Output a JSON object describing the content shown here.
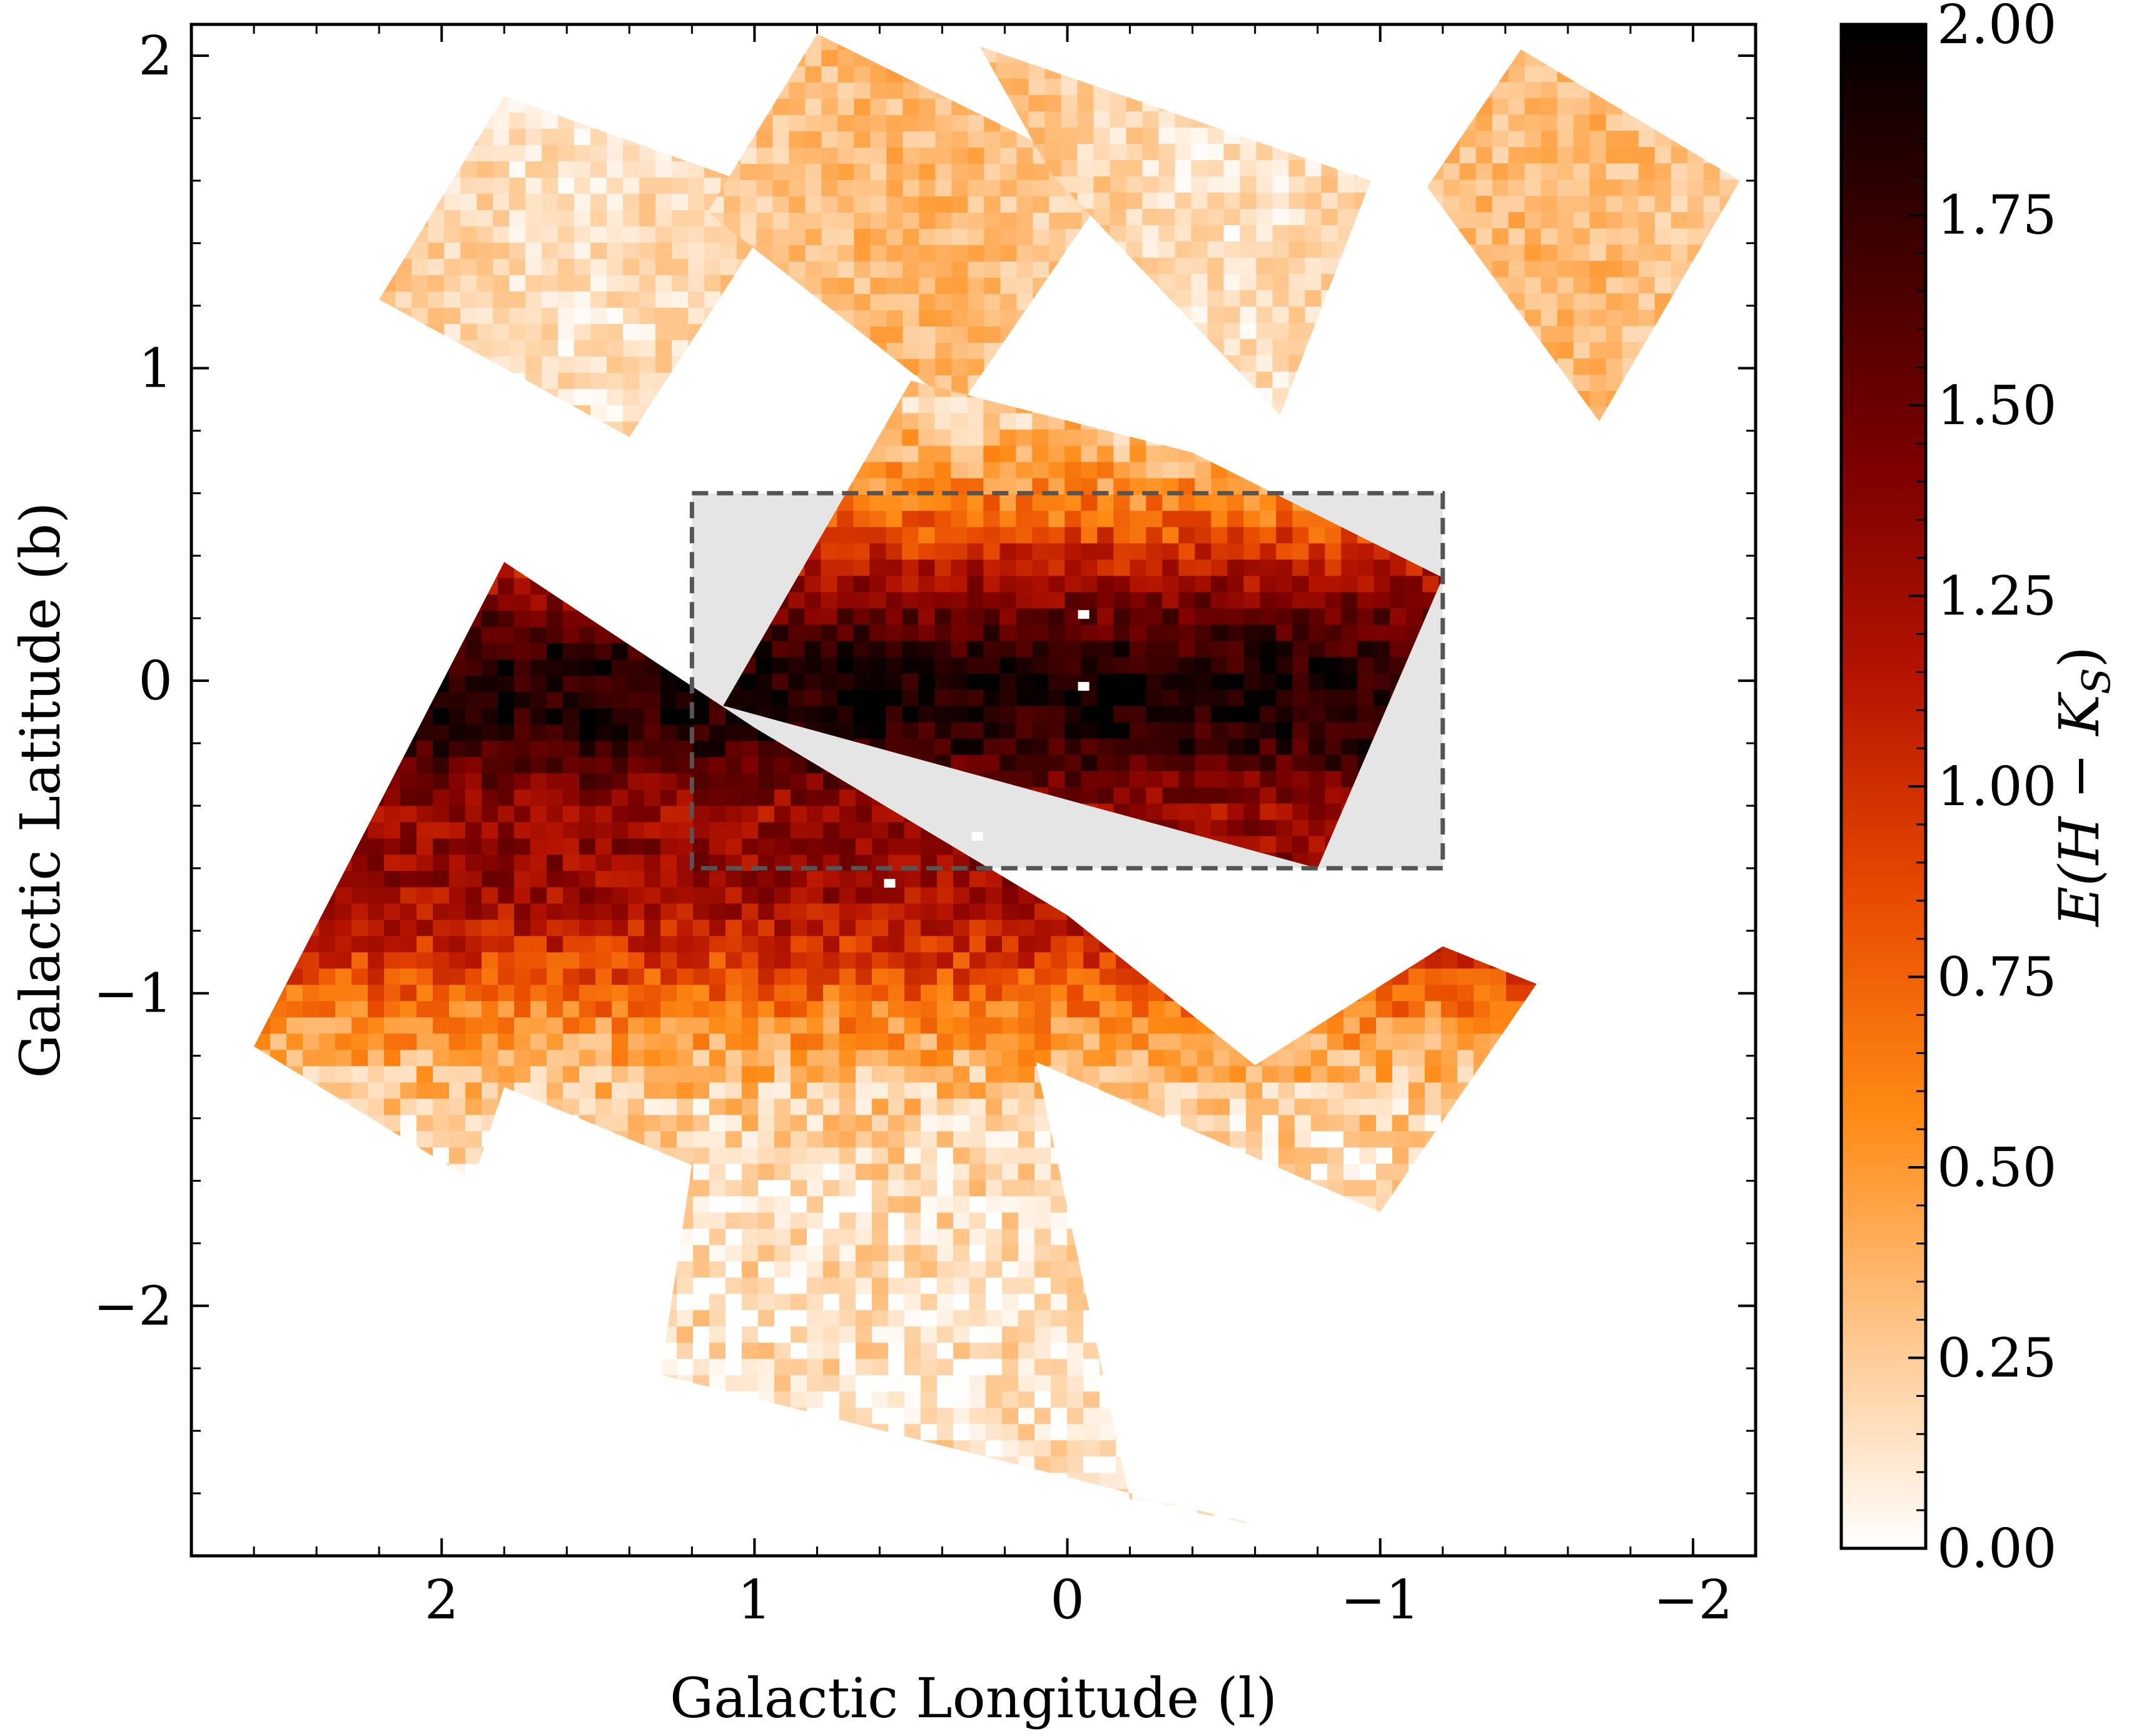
{
  "chart_data": {
    "type": "heatmap",
    "title": "",
    "xlabel": "Galactic Longitude (l)",
    "ylabel": "Galactic Latitude (b)",
    "xlim": [
      2.8,
      -2.2
    ],
    "ylim": [
      -2.8,
      2.1
    ],
    "xticks": [
      2,
      1,
      0,
      -1,
      -2
    ],
    "yticks": [
      2,
      1,
      0,
      -1,
      -2
    ],
    "xtick_labels": [
      "2",
      "1",
      "0",
      "−1",
      "−2"
    ],
    "ytick_labels": [
      "2",
      "1",
      "0",
      "−1",
      "−2"
    ],
    "colorbar": {
      "label": "E(H − K_S)",
      "label_parts": {
        "open": "E(",
        "h": "H",
        "minus": " − ",
        "k": "K",
        "sub": "S",
        "close": ")"
      },
      "range": [
        0.0,
        2.0
      ],
      "ticks": [
        0.0,
        0.25,
        0.5,
        0.75,
        1.0,
        1.25,
        1.5,
        1.75,
        2.0
      ],
      "tick_labels": [
        "0.00",
        "0.25",
        "0.50",
        "0.75",
        "1.00",
        "1.25",
        "1.50",
        "1.75",
        "2.00"
      ],
      "colormap": "gist_heat_r",
      "colormap_stops": [
        "#ffffff",
        "#ffc58a",
        "#ff8a14",
        "#e84a00",
        "#b51400",
        "#7a0000",
        "#3e0000",
        "#000000"
      ]
    },
    "highlight_box": {
      "l_range": [
        1.2,
        -1.2
      ],
      "b_range": [
        -0.6,
        0.6
      ],
      "fill": "#e5e5e5",
      "edge": "#555555",
      "style": "dashed"
    },
    "tiles": [
      {
        "name": "top-1",
        "corners_lb": [
          [
            2.2,
            1.22
          ],
          [
            1.8,
            1.87
          ],
          [
            0.9,
            1.55
          ],
          [
            1.4,
            0.78
          ]
        ],
        "mean_extinction": 0.4
      },
      {
        "name": "top-2",
        "corners_lb": [
          [
            1.15,
            1.5
          ],
          [
            0.8,
            2.07
          ],
          [
            -0.15,
            1.6
          ],
          [
            0.35,
            0.87
          ]
        ],
        "mean_extinction": 0.4
      },
      {
        "name": "top-3",
        "corners_lb": [
          [
            0.05,
            1.62
          ],
          [
            0.28,
            2.03
          ],
          [
            -0.97,
            1.6
          ],
          [
            -0.68,
            0.85
          ]
        ],
        "mean_extinction": 0.4
      },
      {
        "name": "top-4",
        "corners_lb": [
          [
            -1.15,
            1.58
          ],
          [
            -1.45,
            2.02
          ],
          [
            -2.15,
            1.6
          ],
          [
            -1.7,
            0.83
          ]
        ],
        "mean_extinction": 0.35
      },
      {
        "name": "central-upper",
        "corners_lb": [
          [
            1.1,
            -0.08
          ],
          [
            0.5,
            0.96
          ],
          [
            -0.4,
            0.73
          ],
          [
            -1.2,
            0.33
          ],
          [
            -0.8,
            -0.6
          ]
        ],
        "mean_extinction": 1.55
      },
      {
        "name": "main-west",
        "corners_lb": [
          [
            2.6,
            -1.17
          ],
          [
            1.8,
            0.38
          ],
          [
            1.0,
            -0.15
          ],
          [
            0.0,
            -0.75
          ],
          [
            -0.6,
            -1.23
          ],
          [
            -1.2,
            -0.85
          ],
          [
            -1.5,
            -0.97
          ],
          [
            -1.0,
            -1.7
          ],
          [
            0.1,
            -1.22
          ],
          [
            -0.2,
            -2.62
          ],
          [
            -0.6,
            -2.7
          ],
          [
            1.3,
            -2.22
          ],
          [
            1.2,
            -1.55
          ],
          [
            1.8,
            -1.3
          ],
          [
            1.9,
            -1.6
          ]
        ],
        "mean_extinction": 0.85
      }
    ],
    "masked_spots_lb": [
      [
        -0.05,
        0.21
      ],
      [
        -0.05,
        -0.02
      ],
      [
        0.29,
        -0.5
      ],
      [
        0.57,
        -0.65
      ]
    ]
  }
}
